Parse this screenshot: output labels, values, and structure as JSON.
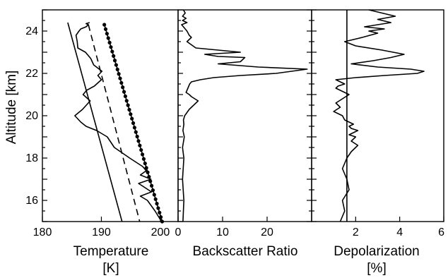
{
  "chart_data": [
    {
      "type": "line",
      "xlabel_line1": "Temperature",
      "xlabel_line2": "[K]",
      "ylabel": "Altitude [km]",
      "xlim": [
        180,
        203
      ],
      "ylim": [
        15,
        25
      ],
      "x_ticks": [
        180,
        190,
        200
      ],
      "y_ticks": [
        16,
        18,
        20,
        22,
        24
      ],
      "series": [
        {
          "style": "solid-thin",
          "x": [
            184.3,
            193.5
          ],
          "y": [
            24.4,
            15.0
          ]
        },
        {
          "style": "dashed",
          "x": [
            187.8,
            196.5
          ],
          "y": [
            24.3,
            15.0
          ]
        },
        {
          "style": "dotted-markers",
          "x": [
            190.5,
            200.3
          ],
          "y": [
            24.3,
            15.0
          ]
        },
        {
          "style": "solid",
          "x": [
            200.2,
            199.1,
            197.8,
            196.6,
            198.5,
            197.4,
            196.3,
            198.4,
            196.6,
            197.6,
            197.0,
            194.8,
            192.2,
            191.0,
            189.2,
            187.4,
            186.5,
            185.5,
            186.8,
            188.1,
            186.9,
            187.5,
            188.8,
            190.0,
            189.4,
            190.1,
            188.7,
            188.2,
            187.3,
            186.0,
            185.9,
            185.7,
            186.2,
            186.5,
            187.4,
            187.8,
            187.4,
            188.0
          ],
          "y": [
            15.0,
            15.5,
            16.0,
            16.2,
            16.4,
            16.6,
            16.8,
            17.0,
            17.2,
            17.4,
            17.6,
            18.0,
            18.5,
            19.0,
            19.3,
            19.5,
            19.7,
            20.0,
            20.3,
            20.7,
            21.0,
            21.2,
            21.4,
            21.7,
            21.9,
            22.1,
            22.4,
            22.7,
            23.0,
            23.2,
            23.5,
            23.8,
            24.0,
            24.1,
            24.2,
            24.3,
            24.35,
            24.4
          ]
        }
      ]
    },
    {
      "type": "line",
      "xlabel": "Backscatter Ratio",
      "xlim": [
        0,
        30
      ],
      "ylim": [
        15,
        25
      ],
      "x_ticks": [
        0,
        10,
        20
      ],
      "series": [
        {
          "style": "solid",
          "x": [
            1.1,
            1.3,
            1.0,
            1.3,
            1.0,
            1.4,
            1.1,
            1.3,
            1.2,
            1.5,
            2.5,
            3.5,
            4.5,
            3.0,
            2.5,
            1.8,
            2.2,
            2.6,
            3.0,
            5.0,
            8.0,
            14.0,
            22.0,
            29.0,
            18.0,
            9.0,
            14.0,
            15.0,
            9.0,
            6.0,
            14.0,
            4.0,
            2.0,
            3.0,
            2.5,
            2.0,
            1.2,
            0.8,
            2.0,
            1.0,
            1.8,
            1.0,
            1.6,
            1.2
          ],
          "y": [
            15.0,
            16.0,
            17.0,
            18.0,
            18.5,
            19.0,
            19.3,
            19.6,
            19.8,
            20.0,
            20.3,
            20.5,
            20.7,
            20.9,
            21.0,
            21.1,
            21.3,
            21.5,
            21.6,
            21.7,
            21.8,
            21.9,
            22.0,
            22.2,
            22.3,
            22.45,
            22.55,
            22.75,
            22.8,
            22.9,
            23.0,
            23.2,
            23.5,
            23.7,
            23.8,
            24.0,
            24.2,
            24.3,
            24.4,
            24.5,
            24.6,
            24.7,
            24.85,
            25.0
          ]
        }
      ]
    },
    {
      "type": "line",
      "xlabel_line1": "Depolarization",
      "xlabel_line2": "[%]",
      "xlim": [
        0,
        6
      ],
      "ylim": [
        15,
        25
      ],
      "x_ticks": [
        2,
        4,
        6
      ],
      "series": [
        {
          "style": "solid-thin",
          "x": [
            1.6,
            1.6
          ],
          "y": [
            15.0,
            25.0
          ]
        },
        {
          "style": "solid",
          "x": [
            1.3,
            1.5,
            1.4,
            1.7,
            1.6,
            1.4,
            1.6,
            1.8,
            2.1,
            1.8,
            2.0,
            1.7,
            2.1,
            1.8,
            1.7,
            1.9,
            1.5,
            1.4,
            1.0,
            1.3,
            1.1,
            1.4,
            1.7,
            1.3,
            1.1,
            1.2,
            1.5,
            1.3,
            1.1,
            2.0,
            3.3,
            4.8,
            5.1,
            4.5,
            3.0,
            1.8,
            2.8,
            3.6,
            4.2,
            3.2,
            2.0,
            1.5,
            2.3,
            3.0,
            2.6,
            3.3,
            2.4,
            3.6,
            3.0,
            3.8,
            3.2,
            2.6
          ],
          "y": [
            15.0,
            15.5,
            16.0,
            16.5,
            17.0,
            17.5,
            18.0,
            18.3,
            18.6,
            18.8,
            19.0,
            19.1,
            19.3,
            19.4,
            19.5,
            19.6,
            19.8,
            20.0,
            20.2,
            20.4,
            20.6,
            20.8,
            21.0,
            21.2,
            21.3,
            21.4,
            21.5,
            21.6,
            21.7,
            21.8,
            21.9,
            22.0,
            22.1,
            22.2,
            22.3,
            22.45,
            22.6,
            22.75,
            22.9,
            23.1,
            23.3,
            23.5,
            23.7,
            23.9,
            24.0,
            24.1,
            24.2,
            24.4,
            24.55,
            24.7,
            24.85,
            25.0
          ]
        }
      ]
    }
  ]
}
